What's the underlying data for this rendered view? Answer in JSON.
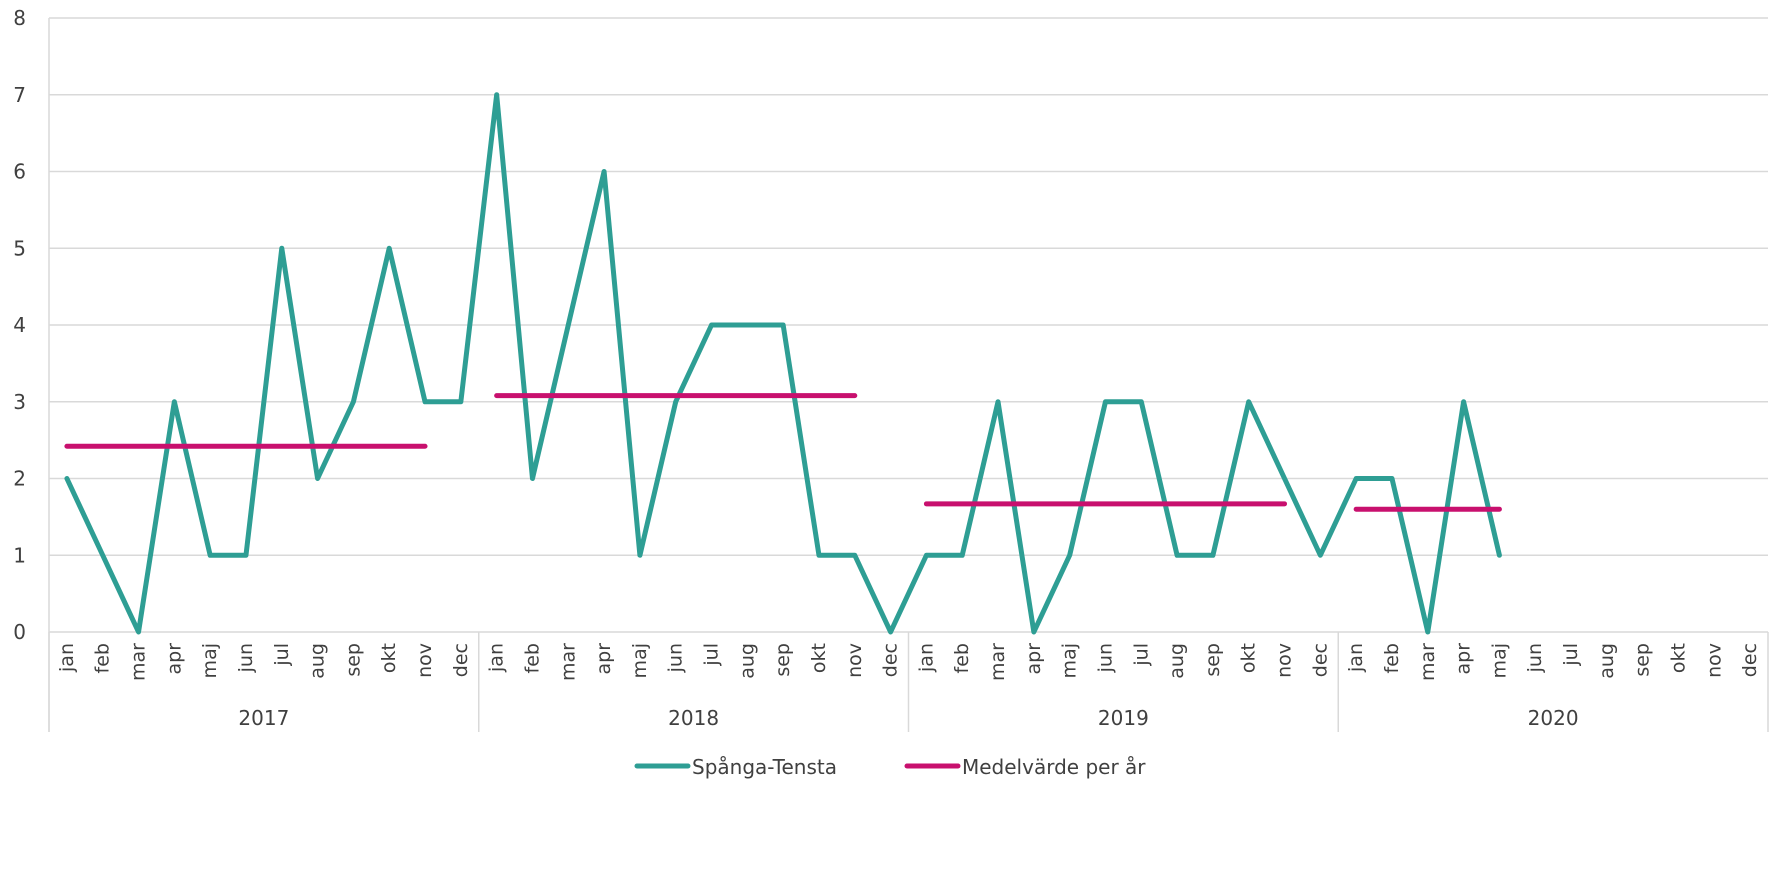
{
  "chart_data": {
    "type": "line",
    "title": "",
    "xlabel": "",
    "ylabel": "",
    "ylim": [
      0,
      8
    ],
    "yticks": [
      "0",
      "1",
      "2",
      "3",
      "4",
      "5",
      "6",
      "7",
      "8"
    ],
    "grid": true,
    "legend_position": "bottom",
    "months": [
      "jan",
      "feb",
      "mar",
      "apr",
      "maj",
      "jun",
      "jul",
      "aug",
      "sep",
      "okt",
      "nov",
      "dec"
    ],
    "years": [
      "2017",
      "2018",
      "2019",
      "2020"
    ],
    "series": [
      {
        "name": "Spånga-Tensta",
        "color": "#2e9e94",
        "values": [
          2,
          1,
          0,
          3,
          1,
          1,
          5,
          2,
          3,
          5,
          3,
          3,
          7,
          2,
          4,
          6,
          1,
          3,
          4,
          4,
          4,
          1,
          1,
          0,
          1,
          1,
          3,
          0,
          1,
          3,
          3,
          1,
          1,
          3,
          2,
          1,
          2,
          2,
          0,
          3,
          1,
          null,
          null,
          null,
          null,
          null,
          null,
          null
        ]
      },
      {
        "name": "Medelvärde per år",
        "color": "#c8106e",
        "segments": [
          {
            "year": "2017",
            "from": "jan",
            "to": "nov",
            "value": 2.42
          },
          {
            "year": "2018",
            "from": "jan",
            "to": "nov",
            "value": 3.08
          },
          {
            "year": "2019",
            "from": "jan",
            "to": "nov",
            "value": 1.67
          },
          {
            "year": "2020",
            "from": "jan",
            "to": "maj",
            "value": 1.6
          }
        ]
      }
    ]
  }
}
